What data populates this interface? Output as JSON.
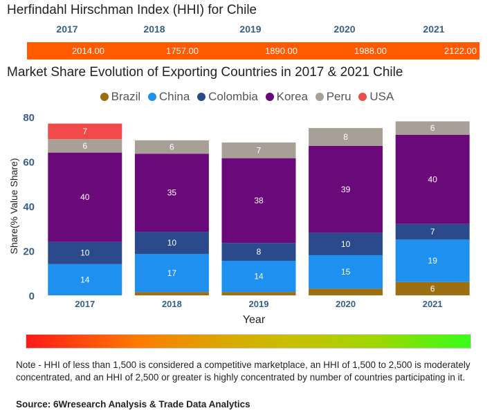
{
  "hhi": {
    "title": "Herfindahl Hirschman Index (HHI) for Chile",
    "years": [
      "2017",
      "2018",
      "2019",
      "2020",
      "2021"
    ],
    "values": [
      "2014.00",
      "1757.00",
      "1890.00",
      "1988.00",
      "2122.00"
    ]
  },
  "chart_data": {
    "type": "bar",
    "stacked": true,
    "title": "Market Share Evolution of Exporting Countries in 2017 & 2021 Chile",
    "xlabel": "Year",
    "ylabel": "Share(% Value Share)",
    "ylim": [
      0,
      80
    ],
    "yticks": [
      "0",
      "20",
      "40",
      "60",
      "80"
    ],
    "categories": [
      "2017",
      "2018",
      "2019",
      "2020",
      "2021"
    ],
    "series": [
      {
        "name": "Brazil",
        "color": "#9c7012",
        "values": [
          0,
          1.5,
          1.5,
          3,
          6
        ],
        "labels": [
          "",
          "",
          "",
          "",
          "6"
        ]
      },
      {
        "name": "China",
        "color": "#1e90f0",
        "values": [
          14,
          17,
          14,
          15,
          19
        ],
        "labels": [
          "14",
          "17",
          "14",
          "15",
          "19"
        ]
      },
      {
        "name": "Colombia",
        "color": "#2b4a8c",
        "values": [
          10,
          10,
          8,
          10,
          7
        ],
        "labels": [
          "10",
          "10",
          "8",
          "10",
          "7"
        ]
      },
      {
        "name": "Korea",
        "color": "#6a0a7a",
        "values": [
          40,
          35,
          38,
          39,
          40
        ],
        "labels": [
          "40",
          "35",
          "38",
          "39",
          "40"
        ]
      },
      {
        "name": "Peru",
        "color": "#a8a096",
        "values": [
          6,
          6,
          7,
          8,
          6
        ],
        "labels": [
          "6",
          "6",
          "7",
          "8",
          "6"
        ]
      },
      {
        "name": "USA",
        "color": "#f04a4a",
        "values": [
          7,
          0,
          0,
          0,
          0
        ],
        "labels": [
          "7",
          "",
          "",
          "",
          ""
        ]
      }
    ],
    "legend": "top"
  },
  "note": "Note - HHI of less than 1,500 is considered a competitive marketplace, an HHI of 1,500 to 2,500 is moderately concentrated, and an HHI of 2,500 or greater is highly concentrated by number of countries participating in it.",
  "source": "Source: 6Wresearch Analysis & Trade Data Analytics"
}
